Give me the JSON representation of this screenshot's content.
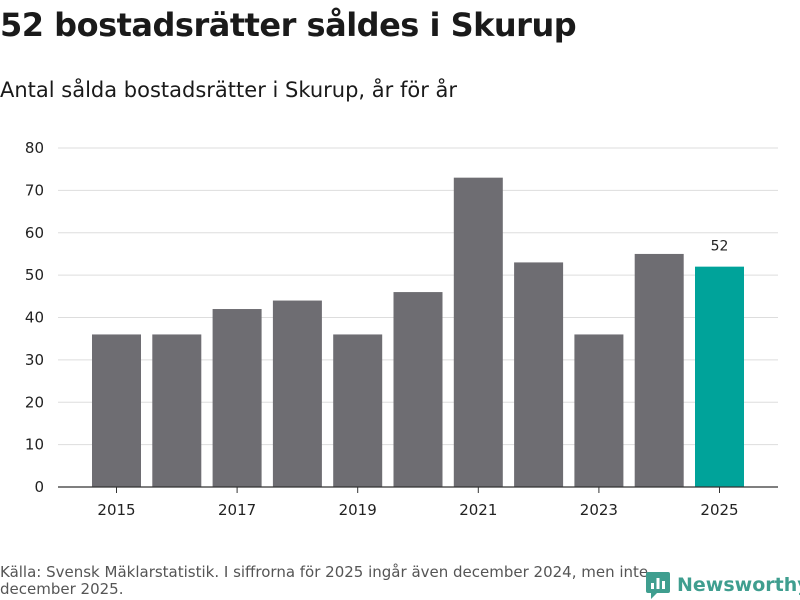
{
  "title": "52 bostadsrätter såldes i Skurup",
  "subtitle": "Antal sålda bostadsrätter i Skurup, år för år",
  "source": "Källa: Svensk Mäklarstatistik. I siffrorna för 2025 ingår även december 2024, men inte december 2025.",
  "brand": {
    "name": "Newsworthy",
    "color": "#3f9e8f"
  },
  "colors": {
    "bar": "#6e6d72",
    "highlight": "#00a39a",
    "grid": "#dddddd",
    "axis": "#333333"
  },
  "chart_data": {
    "type": "bar",
    "title": "52 bostadsrätter såldes i Skurup",
    "xlabel": "",
    "ylabel": "",
    "categories": [
      "2015",
      "2016",
      "2017",
      "2018",
      "2019",
      "2020",
      "2021",
      "2022",
      "2023",
      "2024",
      "2025"
    ],
    "values": [
      36,
      36,
      42,
      44,
      36,
      46,
      73,
      53,
      36,
      55,
      52
    ],
    "x_tick_labels": [
      "2015",
      "2017",
      "2019",
      "2021",
      "2023",
      "2025"
    ],
    "ylim": [
      0,
      80
    ],
    "y_ticks": [
      0,
      10,
      20,
      30,
      40,
      50,
      60,
      70,
      80
    ],
    "highlight_index": 10,
    "data_labels": [
      {
        "index": 10,
        "text": "52"
      }
    ],
    "grid": true
  }
}
